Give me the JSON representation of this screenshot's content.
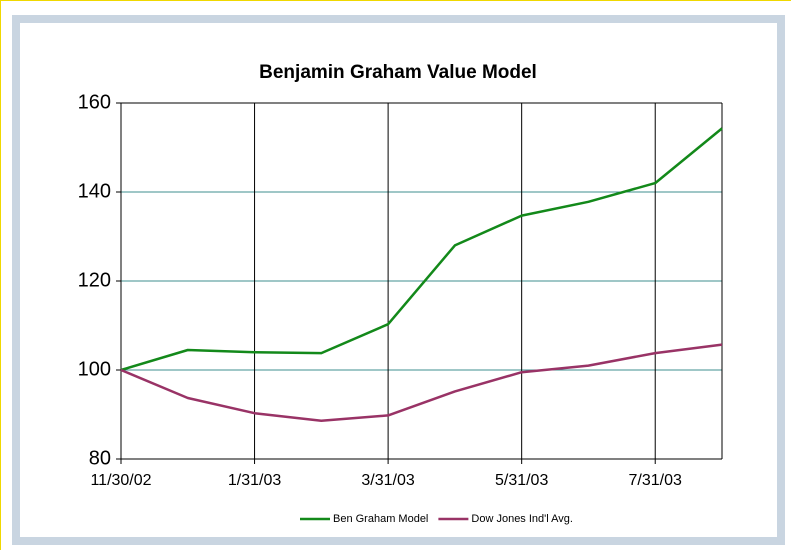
{
  "chart_data": {
    "type": "line",
    "title": "Benjamin Graham Value Model",
    "categories": [
      "11/30/02",
      null,
      "1/31/03",
      null,
      "3/31/03",
      null,
      "5/31/03",
      null,
      "7/31/03",
      null
    ],
    "series": [
      {
        "name": "Ben Graham Model",
        "color": "#13891a",
        "values": [
          100,
          104.5,
          104,
          103.8,
          110.3,
          128,
          134.7,
          137.8,
          142,
          154.3
        ]
      },
      {
        "name": "Dow Jones Ind'l Avg.",
        "color": "#993366",
        "values": [
          100,
          93.7,
          90.3,
          88.6,
          89.8,
          95.2,
          99.5,
          101,
          103.8,
          105.7
        ]
      }
    ],
    "ylim": [
      80,
      160
    ],
    "yticks": [
      80,
      100,
      120,
      140,
      160
    ],
    "grid": true,
    "legend": "bottom"
  }
}
